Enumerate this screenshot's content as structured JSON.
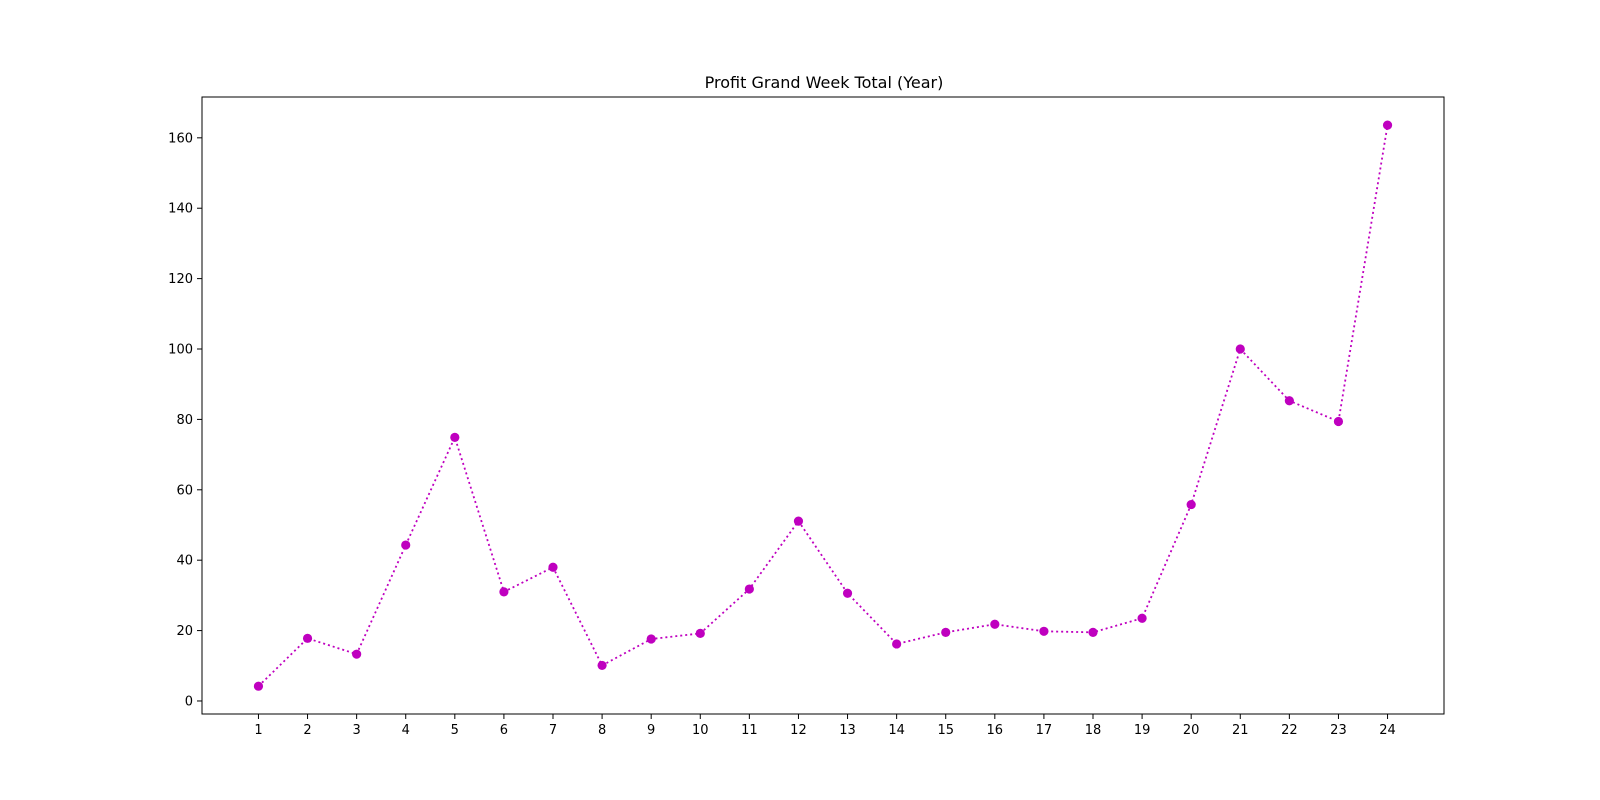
{
  "chart_data": {
    "type": "line",
    "title": "Profit Grand Week Total (Year)",
    "xlabel": "",
    "ylabel": "",
    "x": [
      1,
      2,
      3,
      4,
      5,
      6,
      7,
      8,
      9,
      10,
      11,
      12,
      13,
      14,
      15,
      16,
      17,
      18,
      19,
      20,
      21,
      22,
      23,
      24
    ],
    "x_tick_labels": [
      "1",
      "2",
      "3",
      "4",
      "5",
      "6",
      "7",
      "8",
      "9",
      "10",
      "11",
      "12",
      "13",
      "14",
      "15",
      "16",
      "17",
      "18",
      "19",
      "20",
      "21",
      "22",
      "23",
      "24"
    ],
    "y_ticks": [
      0,
      20,
      40,
      60,
      80,
      100,
      120,
      140,
      160
    ],
    "y_tick_labels": [
      "0",
      "20",
      "40",
      "60",
      "80",
      "100",
      "120",
      "140",
      "160"
    ],
    "xlim": [
      -0.15,
      25.15
    ],
    "ylim": [
      -3.7,
      171.6
    ],
    "grid": false,
    "series": [
      {
        "values": [
          4.2,
          17.8,
          13.3,
          44.3,
          74.9,
          31.0,
          38.0,
          10.1,
          17.6,
          19.2,
          31.8,
          51.1,
          30.6,
          16.2,
          19.5,
          21.8,
          19.8,
          19.5,
          23.5,
          55.8,
          100.0,
          85.3,
          79.4,
          163.6
        ],
        "color": "#bf00bf",
        "line_style": "dotted",
        "marker": "circle"
      }
    ]
  }
}
